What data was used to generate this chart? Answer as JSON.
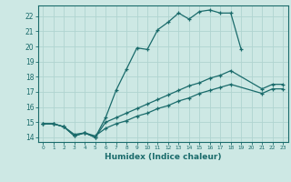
{
  "xlabel": "Humidex (Indice chaleur)",
  "ylabel": "",
  "xlim": [
    -0.5,
    23.5
  ],
  "ylim": [
    13.7,
    22.7
  ],
  "bg_color": "#cde8e4",
  "line_color": "#1a6b6b",
  "grid_color": "#b0d4d0",
  "line1_x": [
    0,
    1,
    2,
    3,
    4,
    5,
    6,
    7,
    8,
    9,
    10,
    11,
    12,
    13,
    14,
    15,
    16,
    17,
    18,
    19
  ],
  "line1_y": [
    14.9,
    14.9,
    14.7,
    14.1,
    14.3,
    14.0,
    15.3,
    17.1,
    18.5,
    19.9,
    19.8,
    21.1,
    21.6,
    22.2,
    21.8,
    22.3,
    22.4,
    22.2,
    22.2,
    19.8
  ],
  "line2_x": [
    0,
    1,
    2,
    3,
    4,
    5,
    6,
    7,
    8,
    9,
    10,
    11,
    12,
    13,
    14,
    15,
    16,
    17,
    18,
    21,
    22,
    23
  ],
  "line2_y": [
    14.9,
    14.9,
    14.7,
    14.1,
    14.3,
    14.0,
    15.0,
    15.3,
    15.6,
    15.9,
    16.2,
    16.5,
    16.8,
    17.1,
    17.4,
    17.6,
    17.9,
    18.1,
    18.4,
    17.2,
    17.5,
    17.5
  ],
  "line3_x": [
    0,
    1,
    2,
    3,
    4,
    5,
    6,
    7,
    8,
    9,
    10,
    11,
    12,
    13,
    14,
    15,
    16,
    17,
    18,
    21,
    22,
    23
  ],
  "line3_y": [
    14.9,
    14.9,
    14.7,
    14.2,
    14.3,
    14.1,
    14.6,
    14.9,
    15.1,
    15.4,
    15.6,
    15.9,
    16.1,
    16.4,
    16.6,
    16.9,
    17.1,
    17.3,
    17.5,
    16.9,
    17.2,
    17.2
  ],
  "yticks": [
    14,
    15,
    16,
    17,
    18,
    19,
    20,
    21,
    22
  ],
  "xticks": [
    0,
    1,
    2,
    3,
    4,
    5,
    6,
    7,
    8,
    9,
    10,
    11,
    12,
    13,
    14,
    15,
    16,
    17,
    18,
    19,
    20,
    21,
    22,
    23
  ]
}
